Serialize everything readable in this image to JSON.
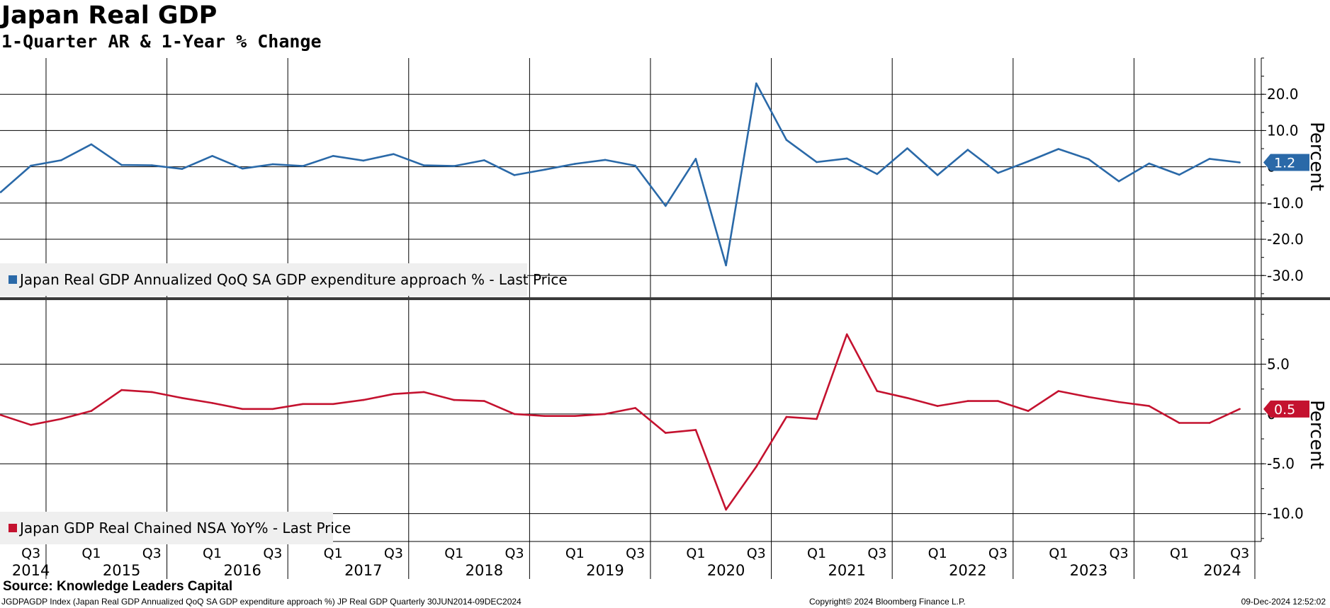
{
  "title": "Japan Real GDP",
  "subtitle": "1-Quarter AR & 1-Year % Change",
  "source": "Source: Knowledge Leaders Capital",
  "footer": {
    "left": "JGDPAGDP Index (Japan Real GDP Annualized QoQ SA GDP expenditure approach %) JP Real GDP  Quarterly 30JUN2014-09DEC2024",
    "middle": "Copyright© 2024 Bloomberg Finance L.P.",
    "right": "09-Dec-2024 12:52:02"
  },
  "colors": {
    "top_series": "#2a69a8",
    "bottom_series": "#c4122f",
    "grid": "#000000",
    "legend_bg": "#efefef"
  },
  "chart_data": [
    {
      "type": "line",
      "panel": "top",
      "ylabel": "Percent",
      "ylim": [
        -36,
        30
      ],
      "yticks": [
        "20.0",
        "10.0",
        "0",
        "-10.0",
        "-20.0",
        "-30.0"
      ],
      "ytick_values": [
        20,
        10,
        0,
        -10,
        -20,
        -30
      ],
      "grid": true,
      "legend": "bottom-left",
      "series": [
        {
          "name": "Japan Real GDP Annualized QoQ SA GDP expenditure approach % - Last Price",
          "last_value_label": "1.2",
          "x": [
            "2014Q2",
            "2014Q3",
            "2014Q4",
            "2015Q1",
            "2015Q2",
            "2015Q3",
            "2015Q4",
            "2016Q1",
            "2016Q2",
            "2016Q3",
            "2016Q4",
            "2017Q1",
            "2017Q2",
            "2017Q3",
            "2017Q4",
            "2018Q1",
            "2018Q2",
            "2018Q3",
            "2018Q4",
            "2019Q1",
            "2019Q2",
            "2019Q3",
            "2019Q4",
            "2020Q1",
            "2020Q2",
            "2020Q3",
            "2020Q4",
            "2021Q1",
            "2021Q2",
            "2021Q3",
            "2021Q4",
            "2022Q1",
            "2022Q2",
            "2022Q3",
            "2022Q4",
            "2023Q1",
            "2023Q2",
            "2023Q3",
            "2023Q4",
            "2024Q1",
            "2024Q2",
            "2024Q3"
          ],
          "values": [
            -7.0,
            0.3,
            1.8,
            6.2,
            0.5,
            0.4,
            -0.6,
            3.0,
            -0.5,
            0.7,
            0.2,
            3.0,
            1.7,
            3.5,
            0.4,
            0.2,
            1.8,
            -2.3,
            -0.8,
            0.8,
            1.9,
            0.3,
            -10.8,
            2.2,
            -27.2,
            23.0,
            7.4,
            1.3,
            2.3,
            -2.0,
            5.1,
            -2.3,
            4.7,
            -1.7,
            1.5,
            4.9,
            2.1,
            -4.0,
            0.9,
            -2.2,
            2.2,
            1.2
          ]
        }
      ]
    },
    {
      "type": "line",
      "panel": "bottom",
      "ylabel": "Percent",
      "ylim": [
        -12.8,
        11.5
      ],
      "yticks": [
        "5.0",
        "0",
        "-5.0",
        "-10.0"
      ],
      "ytick_values": [
        5,
        0,
        -5,
        -10
      ],
      "grid": true,
      "legend": "bottom-left",
      "series": [
        {
          "name": "Japan GDP Real Chained NSA YoY% - Last Price",
          "last_value_label": "0.5",
          "x": [
            "2014Q2",
            "2014Q3",
            "2014Q4",
            "2015Q1",
            "2015Q2",
            "2015Q3",
            "2015Q4",
            "2016Q1",
            "2016Q2",
            "2016Q3",
            "2016Q4",
            "2017Q1",
            "2017Q2",
            "2017Q3",
            "2017Q4",
            "2018Q1",
            "2018Q2",
            "2018Q3",
            "2018Q4",
            "2019Q1",
            "2019Q2",
            "2019Q3",
            "2019Q4",
            "2020Q1",
            "2020Q2",
            "2020Q3",
            "2020Q4",
            "2021Q1",
            "2021Q2",
            "2021Q3",
            "2021Q4",
            "2022Q1",
            "2022Q2",
            "2022Q3",
            "2022Q4",
            "2023Q1",
            "2023Q2",
            "2023Q3",
            "2023Q4",
            "2024Q1",
            "2024Q2",
            "2024Q3"
          ],
          "values": [
            -0.1,
            -1.1,
            -0.5,
            0.3,
            2.4,
            2.2,
            1.6,
            1.1,
            0.5,
            0.5,
            1.0,
            1.0,
            1.4,
            2.0,
            2.2,
            1.4,
            1.3,
            0.0,
            -0.2,
            -0.2,
            0.0,
            0.6,
            -1.9,
            -1.6,
            -9.6,
            -5.3,
            -0.3,
            -0.5,
            8.0,
            2.3,
            1.6,
            0.8,
            1.3,
            1.3,
            0.3,
            2.3,
            1.7,
            1.2,
            0.8,
            -0.9,
            -0.9,
            0.5
          ]
        }
      ]
    }
  ],
  "x_axis": {
    "quarter_ticks": [
      {
        "q": "2014Q3",
        "label": "Q3"
      },
      {
        "q": "2015Q1",
        "label": "Q1"
      },
      {
        "q": "2015Q3",
        "label": "Q3"
      },
      {
        "q": "2016Q1",
        "label": "Q1"
      },
      {
        "q": "2016Q3",
        "label": "Q3"
      },
      {
        "q": "2017Q1",
        "label": "Q1"
      },
      {
        "q": "2017Q3",
        "label": "Q3"
      },
      {
        "q": "2018Q1",
        "label": "Q1"
      },
      {
        "q": "2018Q3",
        "label": "Q3"
      },
      {
        "q": "2019Q1",
        "label": "Q1"
      },
      {
        "q": "2019Q3",
        "label": "Q3"
      },
      {
        "q": "2020Q1",
        "label": "Q1"
      },
      {
        "q": "2020Q3",
        "label": "Q3"
      },
      {
        "q": "2021Q1",
        "label": "Q1"
      },
      {
        "q": "2021Q3",
        "label": "Q3"
      },
      {
        "q": "2022Q1",
        "label": "Q1"
      },
      {
        "q": "2022Q3",
        "label": "Q3"
      },
      {
        "q": "2023Q1",
        "label": "Q1"
      },
      {
        "q": "2023Q3",
        "label": "Q3"
      },
      {
        "q": "2024Q1",
        "label": "Q1"
      },
      {
        "q": "2024Q3",
        "label": "Q3"
      }
    ],
    "year_labels": [
      "2014",
      "2015",
      "2016",
      "2017",
      "2018",
      "2019",
      "2020",
      "2021",
      "2022",
      "2023",
      "2024"
    ]
  }
}
